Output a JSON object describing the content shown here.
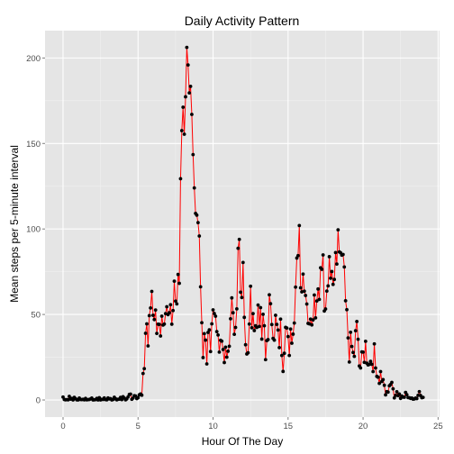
{
  "chart_data": {
    "type": "line",
    "title": "Daily Activity Pattern",
    "xlabel": "Hour Of The Day",
    "ylabel": "Mean steps per 5-minute interval",
    "xlim": [
      -1.2,
      25.1
    ],
    "ylim": [
      -10,
      216
    ],
    "x_ticks": [
      0,
      5,
      10,
      15,
      20,
      25
    ],
    "y_ticks": [
      0,
      50,
      100,
      150,
      200
    ],
    "x_tick_labels": [
      "0",
      "5",
      "10",
      "15",
      "20",
      "25"
    ],
    "y_tick_labels": [
      "0",
      "50",
      "100",
      "150",
      "200"
    ],
    "grid": true,
    "legend": "none",
    "series": [
      {
        "line_color": "#ff0000",
        "point_color": "#000000",
        "x_start": 0,
        "x_step_minutes": 5,
        "values": [
          1.7,
          0.3,
          0.1,
          0.2,
          0.1,
          2.1,
          0.5,
          0.9,
          0,
          1.5,
          0.8,
          0.1,
          0,
          1.1,
          0.3,
          0.2,
          0.4,
          0.1,
          0.9,
          0.1,
          0.2,
          0.3,
          0.6,
          1.1,
          0,
          0.1,
          0.2,
          0.9,
          0,
          1.3,
          0,
          0.4,
          0.3,
          1.2,
          0.2,
          0.1,
          1.2,
          0.6,
          0.8,
          0,
          0.3,
          1.6,
          0.7,
          0.1,
          0.4,
          0.5,
          1.5,
          0.2,
          1.9,
          1.1,
          0.1,
          0.6,
          1.8,
          3.2,
          3.4,
          0.4,
          1.1,
          2.5,
          2.3,
          0.8,
          1.3,
          3.0,
          3.5,
          2.8,
          15.5,
          18.3,
          39.0,
          44.5,
          31.6,
          49.3,
          53.8,
          63.5,
          49.5,
          47.0,
          52.6,
          38.9,
          44.3,
          44.2,
          37.4,
          49.0,
          43.8,
          44.4,
          50.5,
          54.5,
          49.9,
          51.0,
          55.7,
          44.3,
          52.3,
          69.5,
          57.8,
          56.2,
          73.4,
          68.2,
          129.4,
          157.5,
          171.2,
          155.4,
          177.3,
          206.2,
          195.9,
          179.6,
          183.4,
          167.0,
          143.5,
          124.0,
          109.1,
          108.1,
          103.7,
          95.9,
          66.2,
          45.2,
          24.8,
          38.8,
          35.0,
          21.1,
          39.5,
          41.0,
          28.3,
          44.5,
          52.7,
          50.6,
          49.0,
          40.0,
          38.0,
          28.0,
          34.9,
          34.4,
          29.5,
          21.9,
          30.9,
          25.0,
          28.5,
          31.4,
          47.5,
          59.7,
          51.0,
          38.4,
          42.4,
          53.3,
          88.7,
          93.9,
          63.0,
          59.9,
          80.4,
          48.3,
          32.3,
          26.9,
          27.6,
          44.4,
          66.5,
          42.2,
          50.5,
          40.6,
          43.4,
          42.4,
          55.5,
          43.0,
          54.0,
          35.6,
          50.1,
          43.4,
          23.6,
          34.7,
          35.3,
          61.5,
          56.3,
          44.1,
          36.0,
          35.0,
          49.5,
          44.2,
          40.9,
          30.6,
          47.3,
          26.0,
          16.7,
          27.3,
          42.5,
          42.1,
          37.1,
          26.0,
          41.5,
          33.2,
          38.5,
          45.0,
          66.0,
          83.0,
          84.4,
          102.0,
          65.6,
          63.2,
          73.6,
          63.6,
          61.1,
          56.1,
          44.8,
          44.5,
          47.3,
          43.9,
          46.8,
          61.4,
          48.0,
          57.9,
          64.9,
          58.8,
          77.3,
          76.4,
          84.8,
          52.0,
          53.2,
          63.7,
          66.7,
          83.8,
          71.2,
          75.1,
          67.6,
          70.5,
          86.2,
          79.5,
          99.5,
          86.6,
          86.1,
          84.7,
          85.1,
          77.8,
          58.0,
          52.8,
          36.3,
          22.2,
          39.6,
          31.3,
          27.8,
          25.5,
          40.5,
          45.9,
          35.5,
          19.9,
          18.7,
          28.1,
          28.0,
          22.0,
          34.3,
          21.5,
          20.5,
          20.8,
          22.6,
          20.9,
          16.6,
          32.8,
          18.7,
          13.8,
          13.3,
          9.7,
          16.6,
          10.8,
          11.9,
          8.6,
          3.0,
          4.9,
          4.6,
          8.3,
          9.0,
          10.3,
          6.5,
          1.2,
          2.7,
          4.8,
          2.5,
          3.5,
          0.9,
          2.3,
          1.7,
          1.6,
          4.4,
          3.1,
          1.4,
          1.3,
          0.9,
          1.1,
          0.5,
          0.6,
          1.1,
          0.8,
          2.7,
          4.9,
          2.6,
          1.3,
          1.5
        ]
      }
    ]
  }
}
